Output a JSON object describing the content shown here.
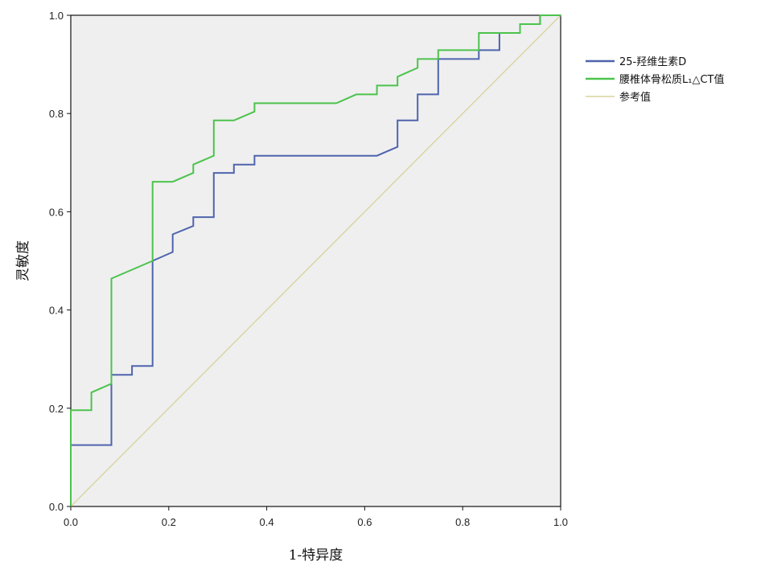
{
  "chart_data": {
    "type": "line",
    "title": "",
    "xlabel": "1-特异度",
    "ylabel": "灵敏度",
    "xlim": [
      0,
      1
    ],
    "ylim": [
      0,
      1
    ],
    "x_ticks": [
      "0.0",
      "0.2",
      "0.4",
      "0.6",
      "0.8",
      "1.0"
    ],
    "y_ticks": [
      "0.0",
      "0.2",
      "0.4",
      "0.6",
      "0.8",
      "1.0"
    ],
    "grid": false,
    "legend_position": "right",
    "series": [
      {
        "name": "25-羟维生素D",
        "color": "#4f64ae",
        "points": [
          [
            0,
            0
          ],
          [
            0,
            0.125
          ],
          [
            0.083,
            0.125
          ],
          [
            0.083,
            0.268
          ],
          [
            0.125,
            0.268
          ],
          [
            0.125,
            0.286
          ],
          [
            0.167,
            0.286
          ],
          [
            0.167,
            0.5
          ],
          [
            0.208,
            0.518
          ],
          [
            0.208,
            0.554
          ],
          [
            0.25,
            0.571
          ],
          [
            0.25,
            0.589
          ],
          [
            0.292,
            0.589
          ],
          [
            0.292,
            0.679
          ],
          [
            0.333,
            0.679
          ],
          [
            0.333,
            0.696
          ],
          [
            0.375,
            0.696
          ],
          [
            0.375,
            0.714
          ],
          [
            0.625,
            0.714
          ],
          [
            0.667,
            0.732
          ],
          [
            0.667,
            0.786
          ],
          [
            0.708,
            0.786
          ],
          [
            0.708,
            0.839
          ],
          [
            0.75,
            0.839
          ],
          [
            0.75,
            0.911
          ],
          [
            0.833,
            0.911
          ],
          [
            0.833,
            0.929
          ],
          [
            0.875,
            0.929
          ],
          [
            0.875,
            0.964
          ],
          [
            0.917,
            0.964
          ],
          [
            0.917,
            0.982
          ],
          [
            0.958,
            0.982
          ],
          [
            0.958,
            1
          ],
          [
            1,
            1
          ]
        ]
      },
      {
        "name": "腰椎体骨松质L₁△CT值",
        "color": "#4cc34c",
        "points": [
          [
            0,
            0
          ],
          [
            0,
            0.196
          ],
          [
            0.042,
            0.196
          ],
          [
            0.042,
            0.232
          ],
          [
            0.083,
            0.25
          ],
          [
            0.083,
            0.464
          ],
          [
            0.167,
            0.5
          ],
          [
            0.167,
            0.661
          ],
          [
            0.208,
            0.661
          ],
          [
            0.25,
            0.679
          ],
          [
            0.25,
            0.696
          ],
          [
            0.292,
            0.714
          ],
          [
            0.292,
            0.786
          ],
          [
            0.333,
            0.786
          ],
          [
            0.375,
            0.804
          ],
          [
            0.375,
            0.821
          ],
          [
            0.542,
            0.821
          ],
          [
            0.583,
            0.839
          ],
          [
            0.625,
            0.839
          ],
          [
            0.625,
            0.857
          ],
          [
            0.667,
            0.857
          ],
          [
            0.667,
            0.875
          ],
          [
            0.708,
            0.893
          ],
          [
            0.708,
            0.911
          ],
          [
            0.75,
            0.911
          ],
          [
            0.75,
            0.929
          ],
          [
            0.833,
            0.929
          ],
          [
            0.833,
            0.964
          ],
          [
            0.917,
            0.964
          ],
          [
            0.917,
            0.982
          ],
          [
            0.958,
            0.982
          ],
          [
            0.958,
            1
          ],
          [
            1,
            1
          ]
        ]
      },
      {
        "name": "参考值",
        "color": "#d9d4a1",
        "points": [
          [
            0,
            0
          ],
          [
            1,
            1
          ]
        ]
      }
    ]
  },
  "colors": {
    "plot_background": "#efefef",
    "axis": "#111111"
  }
}
